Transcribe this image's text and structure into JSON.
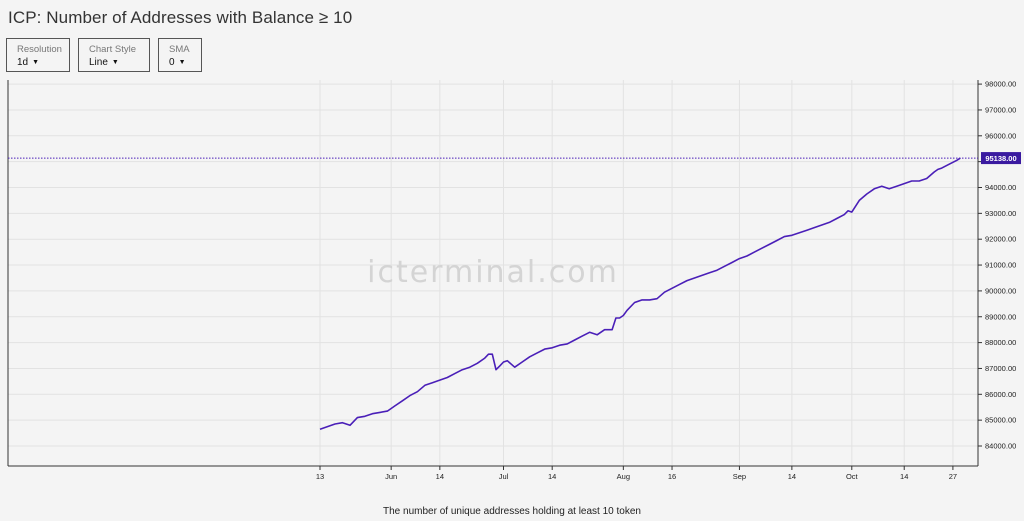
{
  "title": "ICP: Number of Addresses with Balance ≥ 10",
  "controls": {
    "resolution": {
      "label": "Resolution",
      "value": "1d"
    },
    "chart_style": {
      "label": "Chart Style",
      "value": "Line"
    },
    "sma": {
      "label": "SMA",
      "value": "0"
    }
  },
  "watermark": "icterminal.com",
  "caption": "The number of unique addresses holding at least 10 token",
  "colors": {
    "line": "#4a1fb8",
    "badge": "#3a1aa0",
    "grid": "#e2e2e2",
    "axis": "#333333"
  },
  "chart_data": {
    "type": "line",
    "title": "ICP: Number of Addresses with Balance ≥ 10",
    "xlabel": "",
    "ylabel": "",
    "x_ticks": [
      "13",
      "Jun",
      "14",
      "Jul",
      "14",
      "Aug",
      "16",
      "Sep",
      "14",
      "Oct",
      "14",
      "27"
    ],
    "x_tick_days": [
      0,
      19,
      32,
      49,
      62,
      81,
      94,
      112,
      126,
      142,
      156,
      169
    ],
    "y_ticks": [
      "84000.00",
      "85000.00",
      "86000.00",
      "87000.00",
      "88000.00",
      "89000.00",
      "90000.00",
      "91000.00",
      "92000.00",
      "93000.00",
      "94000.00",
      "95000.00",
      "96000.00",
      "97000.00",
      "98000.00"
    ],
    "ylim": [
      83000,
      98200
    ],
    "grid": true,
    "last_value": 95138,
    "last_value_label": "95138.00",
    "series": [
      {
        "x": [
          0,
          2,
          4,
          6,
          8,
          10,
          12,
          14,
          16,
          18,
          20,
          22,
          24,
          26,
          28,
          30,
          32,
          34,
          36,
          38,
          40,
          42,
          44,
          45,
          46,
          47,
          48,
          49,
          50,
          52,
          54,
          56,
          58,
          60,
          62,
          64,
          66,
          68,
          70,
          72,
          74,
          76,
          78,
          79,
          80,
          81,
          82,
          84,
          86,
          88,
          90,
          92,
          94,
          96,
          98,
          100,
          102,
          104,
          106,
          108,
          110,
          112,
          114,
          116,
          118,
          120,
          122,
          124,
          126,
          128,
          130,
          132,
          134,
          136,
          138,
          140,
          141,
          142,
          144,
          146,
          148,
          150,
          152,
          154,
          156,
          158,
          160,
          162,
          164,
          165,
          166,
          168,
          170,
          171
        ],
        "values": [
          84650,
          84750,
          84850,
          84900,
          84800,
          85100,
          85150,
          85250,
          85300,
          85350,
          85550,
          85750,
          85950,
          86100,
          86350,
          86450,
          86550,
          86650,
          86800,
          86950,
          87050,
          87200,
          87400,
          87550,
          87550,
          86950,
          87100,
          87250,
          87300,
          87050,
          87250,
          87450,
          87600,
          87750,
          87800,
          87900,
          87950,
          88100,
          88250,
          88400,
          88300,
          88500,
          88500,
          88950,
          88950,
          89050,
          89250,
          89550,
          89650,
          89650,
          89700,
          89950,
          90100,
          90250,
          90400,
          90500,
          90600,
          90700,
          90800,
          90950,
          91100,
          91250,
          91350,
          91500,
          91650,
          91800,
          91950,
          92100,
          92150,
          92250,
          92350,
          92450,
          92550,
          92650,
          92800,
          92950,
          93100,
          93050,
          93500,
          93750,
          93950,
          94050,
          93950,
          94050,
          94150,
          94250,
          94250,
          94350,
          94600,
          94700,
          94750,
          94900,
          95050,
          95138
        ]
      }
    ]
  }
}
